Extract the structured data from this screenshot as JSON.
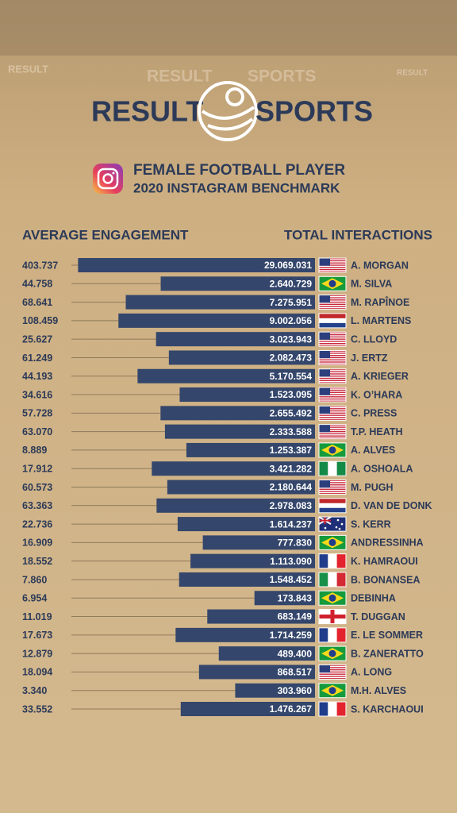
{
  "brand": [
    "RESULT",
    "SPORTS"
  ],
  "chart_data": {
    "type": "bar",
    "orientation": "horizontal",
    "title": "FEMALE FOOTBALL PLAYER",
    "subtitle": "2020 INSTAGRAM BENCHMARK",
    "categories": [
      "A. MORGAN",
      "M. SILVA",
      "M. RAPÎNOE",
      "L. MARTENS",
      "C. LLOYD",
      "J. ERTZ",
      "A. KRIEGER",
      "K. O’HARA",
      "C. PRESS",
      "T.P. HEATH",
      "A. ALVES",
      "A. OSHOALA",
      "M. PUGH",
      "D. VAN DE DONK",
      "S. KERR",
      "ANDRESSINHA",
      "K. HAMRAOUI",
      "B. BONANSEA",
      "DEBINHA",
      "T. DUGGAN",
      "E. LE SOMMER",
      "B. ZANERATTO",
      "A. LONG",
      "M.H. ALVES",
      "S. KARCHAOUI"
    ],
    "series": [
      {
        "name": "TOTAL INTERACTIONS",
        "color": "#34466b",
        "values": [
          29069031,
          2640729,
          7275951,
          9002056,
          3023943,
          2082473,
          5170554,
          1523095,
          2655492,
          2333588,
          1253387,
          3421282,
          2180644,
          2978083,
          1614237,
          777830,
          1113090,
          1548452,
          173843,
          683149,
          1714259,
          489400,
          868517,
          303960,
          1476267
        ],
        "value_labels": [
          "29.069.031",
          "2.640.729",
          "7.275.951",
          "9.002.056",
          "3.023.943",
          "2.082.473",
          "5.170.554",
          "1.523.095",
          "2.655.492",
          "2.333.588",
          "1.253.387",
          "3.421.282",
          "2.180.644",
          "2.978.083",
          "1.614.237",
          "777.830",
          "1.113.090",
          "1.548.452",
          "173.843",
          "683.149",
          "1.714.259",
          "489.400",
          "868.517",
          "303.960",
          "1.476.267"
        ]
      },
      {
        "name": "AVERAGE ENGAGEMENT",
        "color": "#2c3a58",
        "values": [
          403737,
          44758,
          68641,
          108459,
          25627,
          61249,
          44193,
          34616,
          57728,
          63070,
          8889,
          17912,
          60573,
          63363,
          22736,
          16909,
          18552,
          7860,
          6954,
          11019,
          17673,
          12879,
          18094,
          3340,
          33552
        ],
        "value_labels": [
          "403.737",
          "44.758",
          "68.641",
          "108.459",
          "25.627",
          "61.249",
          "44.193",
          "34.616",
          "57.728",
          "63.070",
          "8.889",
          "17.912",
          "60.573",
          "63.363",
          "22.736",
          "16.909",
          "18.552",
          "7.860",
          "6.954",
          "11.019",
          "17.673",
          "12.879",
          "18.094",
          "3.340",
          "33.552"
        ]
      }
    ],
    "xlim": [
      30000,
      30000000
    ],
    "log_scale": true
  }
}
